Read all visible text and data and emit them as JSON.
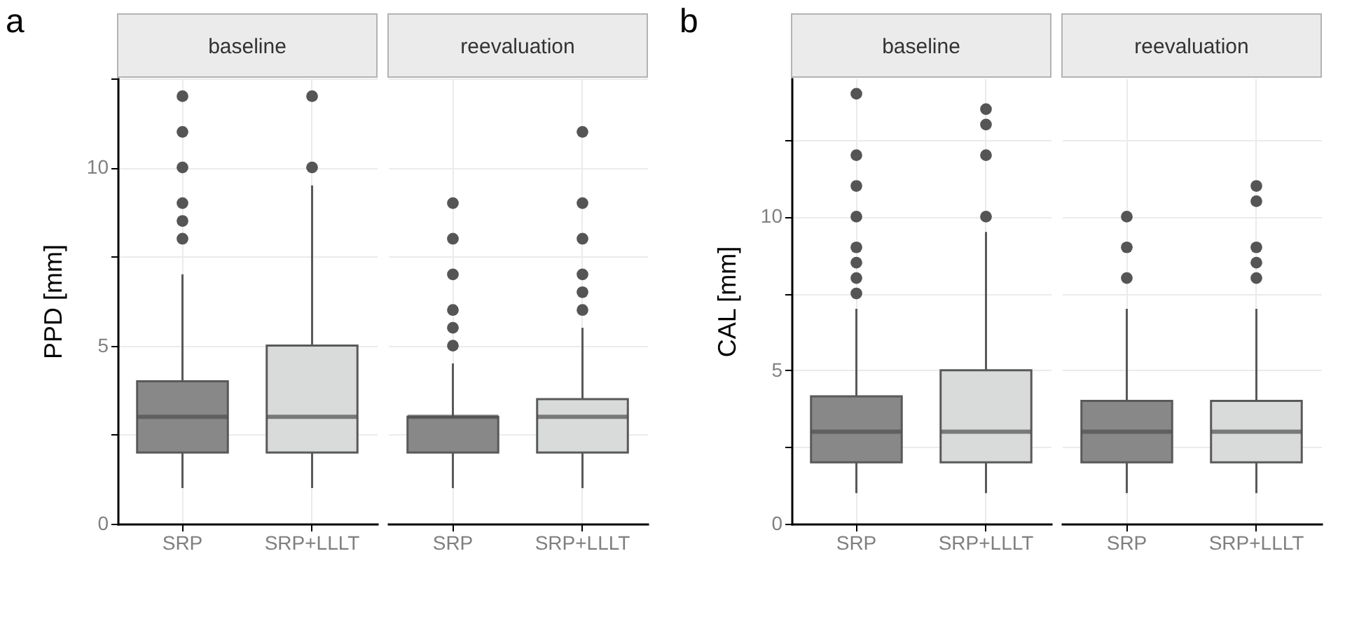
{
  "chart_data": [
    {
      "type": "box",
      "title": "baseline",
      "annotations": [
        "a"
      ],
      "ylabel": "PPD [mm]",
      "categories": [
        "SRP",
        "SRP+LLLT"
      ],
      "colors": [
        "#888888",
        "#d9dbdb"
      ],
      "boxes": [
        {
          "low": 1,
          "q1": 2,
          "median": 3,
          "q3": 4,
          "high": 7,
          "outliers": [
            8,
            8.5,
            9,
            10,
            11,
            12
          ]
        },
        {
          "low": 1,
          "q1": 2,
          "median": 3,
          "q3": 5,
          "high": 9.5,
          "outliers": [
            10,
            12
          ]
        }
      ],
      "ylim": [
        0,
        12.5
      ],
      "yticks": [
        0,
        {
          "value": 2.5,
          "label": null
        },
        5,
        {
          "value": 7.5,
          "label": null
        },
        10,
        {
          "value": 12.5,
          "label": null
        }
      ],
      "grid": true,
      "marker": "circle"
    },
    {
      "type": "box",
      "title": "reevaluation",
      "categories": [
        "SRP",
        "SRP+LLLT"
      ],
      "colors": [
        "#888888",
        "#d9dbdb"
      ],
      "boxes": [
        {
          "low": 1,
          "q1": 2,
          "median": 3,
          "q3": 3,
          "high": 4.5,
          "outliers": [
            5,
            5.5,
            6,
            7,
            8,
            9
          ]
        },
        {
          "low": 1,
          "q1": 2,
          "median": 3,
          "q3": 3.5,
          "high": 5.5,
          "outliers": [
            6,
            6.5,
            7,
            8,
            9,
            11
          ]
        }
      ],
      "ylim": [
        0,
        12.5
      ],
      "yticks": [
        0,
        {
          "value": 2.5,
          "label": null
        },
        5,
        {
          "value": 7.5,
          "label": null
        },
        10,
        {
          "value": 12.5,
          "label": null
        }
      ],
      "tick_labels": "x",
      "grid": true,
      "marker": "circle"
    },
    {
      "type": "box",
      "title": "baseline",
      "annotations": [
        "b"
      ],
      "ylabel": "CAL [mm]",
      "categories": [
        "SRP",
        "SRP+LLLT"
      ],
      "colors": [
        "#888888",
        "#d9dbdb"
      ],
      "boxes": [
        {
          "low": 1,
          "q1": 2,
          "median": 3,
          "q3": 4.15,
          "high": 7,
          "outliers": [
            7.5,
            8,
            8.5,
            9,
            10,
            11,
            12,
            14
          ]
        },
        {
          "low": 1,
          "q1": 2,
          "median": 3,
          "q3": 5,
          "high": 9.5,
          "outliers": [
            10,
            12,
            13,
            13.5
          ]
        }
      ],
      "ylim": [
        0,
        14.5
      ],
      "yticks": [
        0,
        {
          "value": 2.5,
          "label": null
        },
        5,
        {
          "value": 7.5,
          "label": null
        },
        10,
        {
          "value": 12.5,
          "label": null
        }
      ],
      "grid": true,
      "marker": "circle"
    },
    {
      "type": "box",
      "title": "reevaluation",
      "categories": [
        "SRP",
        "SRP+LLLT"
      ],
      "colors": [
        "#888888",
        "#d9dbdb"
      ],
      "boxes": [
        {
          "low": 1,
          "q1": 2,
          "median": 3,
          "q3": 4,
          "high": 7,
          "outliers": [
            8,
            9,
            10
          ]
        },
        {
          "low": 1,
          "q1": 2,
          "median": 3,
          "q3": 4,
          "high": 7,
          "outliers": [
            8,
            8.5,
            9,
            10.5,
            11
          ]
        }
      ],
      "ylim": [
        0,
        14.5
      ],
      "yticks": [
        0,
        {
          "value": 2.5,
          "label": null
        },
        5,
        {
          "value": 7.5,
          "label": null
        },
        10,
        {
          "value": 12.5,
          "label": null
        }
      ],
      "tick_labels": "x",
      "grid": true,
      "marker": "circle"
    }
  ]
}
